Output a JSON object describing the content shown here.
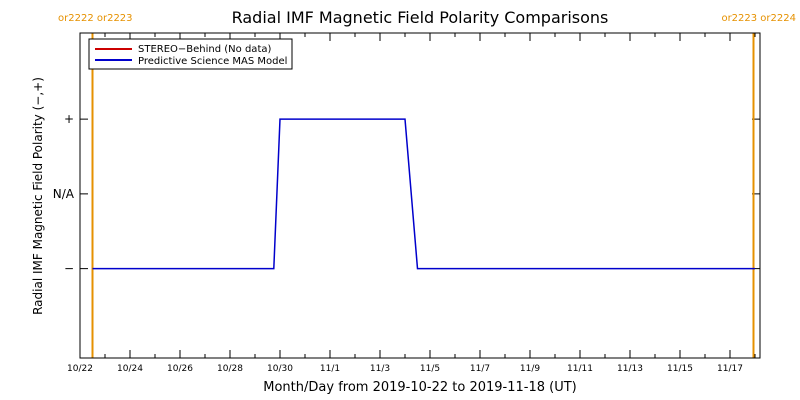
{
  "chart_data": {
    "type": "line",
    "title": "Radial IMF Magnetic Field Polarity Comparisons",
    "xlabel": "Month/Day from 2019-10-22 to 2019-11-18 (UT)",
    "ylabel": "Radial IMF Magnetic Field Polarity (−,+)",
    "x_range": [
      "2019-10-22",
      "2019-11-18"
    ],
    "x_ticks": [
      "10/22",
      "10/24",
      "10/26",
      "10/28",
      "10/30",
      "11/1",
      "11/3",
      "11/5",
      "11/7",
      "11/9",
      "11/11",
      "11/13",
      "11/15",
      "11/17"
    ],
    "y_ticks": [
      "+",
      "N/A",
      "−"
    ],
    "legend_position": "top-left",
    "series": [
      {
        "name": "STEREO−Behind (No data)",
        "color": "#cc0000",
        "points": []
      },
      {
        "name": "Predictive Science MAS Model",
        "color": "#0000cc",
        "points": [
          {
            "date": "2019-10-22T12:00",
            "polarity": "−"
          },
          {
            "date": "2019-10-29T18:00",
            "polarity": "−"
          },
          {
            "date": "2019-10-30T00:00",
            "polarity": "+"
          },
          {
            "date": "2019-11-04T00:00",
            "polarity": "+"
          },
          {
            "date": "2019-11-04T12:00",
            "polarity": "−"
          },
          {
            "date": "2019-11-18T00:00",
            "polarity": "−"
          }
        ]
      }
    ],
    "rotation_markers": [
      {
        "date": "2019-10-22T12:00",
        "label": "or2222 or2223",
        "position": "left"
      },
      {
        "date": "2019-11-18T00:00",
        "label": "or2223 or2224",
        "position": "right"
      }
    ],
    "colors": {
      "marker": "#e69100",
      "axis": "#000000"
    }
  }
}
